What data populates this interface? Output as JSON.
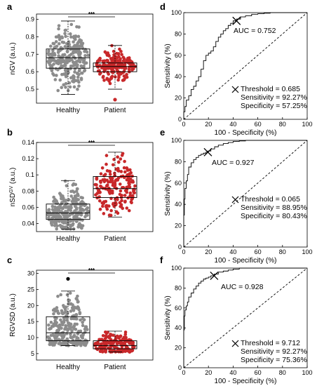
{
  "chart_data": [
    {
      "panel": "a",
      "type": "scatter",
      "subtype": "boxplot-with-jittered-points",
      "categories": [
        "Healthy",
        "Patient"
      ],
      "ylabel": "nGV (a.u.)",
      "ylim": [
        0.42,
        0.93
      ],
      "yticks": [
        "0.5",
        "0.6",
        "0.7",
        "0.8",
        "0.9"
      ],
      "significance": "***",
      "colors": {
        "Healthy": "#8c8c8c",
        "Patient": "#c8282a"
      },
      "series": [
        {
          "name": "Healthy",
          "min": 0.47,
          "q1": 0.62,
          "median": 0.68,
          "q3": 0.73,
          "max": 0.89,
          "outliers": []
        },
        {
          "name": "Patient",
          "min": 0.5,
          "q1": 0.6,
          "median": 0.63,
          "q3": 0.65,
          "max": 0.75,
          "outliers": [
            0.44
          ]
        }
      ]
    },
    {
      "panel": "b",
      "type": "scatter",
      "subtype": "boxplot-with-jittered-points",
      "categories": [
        "Healthy",
        "Patient"
      ],
      "ylabel": "nSD",
      "ylabel_sup": "GV",
      "ylabel_suffix": " (a.u.)",
      "ylim": [
        0.03,
        0.14
      ],
      "yticks": [
        "0.04",
        "0.06",
        "0.08",
        "0.1",
        "0.12",
        "0.14"
      ],
      "significance": "***",
      "colors": {
        "Healthy": "#8c8c8c",
        "Patient": "#c8282a"
      },
      "series": [
        {
          "name": "Healthy",
          "min": 0.033,
          "q1": 0.045,
          "median": 0.053,
          "q3": 0.064,
          "max": 0.093,
          "outliers": []
        },
        {
          "name": "Patient",
          "min": 0.048,
          "q1": 0.072,
          "median": 0.083,
          "q3": 0.098,
          "max": 0.128,
          "outliers": []
        }
      ]
    },
    {
      "panel": "c",
      "type": "scatter",
      "subtype": "boxplot-with-jittered-points",
      "categories": [
        "Healthy",
        "Patient"
      ],
      "ylabel": "RGVSD (a.u.)",
      "ylim": [
        3,
        31
      ],
      "yticks": [
        "5",
        "10",
        "15",
        "20",
        "25",
        "30"
      ],
      "significance": "***",
      "colors": {
        "Healthy": "#8c8c8c",
        "Patient": "#c8282a"
      },
      "series": [
        {
          "name": "Healthy",
          "min": 7.5,
          "q1": 9.0,
          "median": 11.5,
          "q3": 16.5,
          "max": 24.5,
          "outliers": [
            28.3
          ]
        },
        {
          "name": "Patient",
          "min": 5.5,
          "q1": 6.5,
          "median": 7.5,
          "q3": 9.0,
          "max": 12.0,
          "outliers": []
        }
      ]
    },
    {
      "panel": "d",
      "type": "line",
      "subtype": "roc",
      "xlabel": "100 - Specificity (%)",
      "ylabel": "Sensitivity (%)",
      "xlim": [
        0,
        100
      ],
      "ylim": [
        0,
        100
      ],
      "xticks": [
        "0",
        "20",
        "40",
        "60",
        "80",
        "100"
      ],
      "yticks": [
        "0",
        "20",
        "40",
        "60",
        "80",
        "100"
      ],
      "auc_text": "AUC = 0.752",
      "threshold_text": "Threshold = 0.685",
      "sensitivity_text": "Sensitivity = 92.27%",
      "specificity_text": "Specificity = 57.25%",
      "operating_point": [
        42.75,
        92.27
      ],
      "x": [
        0,
        1,
        2,
        4,
        6,
        8,
        10,
        12,
        14,
        16,
        18,
        20,
        22,
        24,
        26,
        28,
        30,
        32,
        34,
        36,
        38,
        40,
        42.75,
        46,
        50,
        55,
        60,
        65,
        70,
        80,
        90,
        100
      ],
      "y": [
        0,
        7,
        12,
        18,
        22,
        28,
        31,
        36,
        40,
        47,
        55,
        60,
        62,
        64,
        68,
        73,
        77,
        80,
        83,
        85,
        88,
        90,
        92.27,
        94,
        96,
        97,
        98.5,
        99,
        99.5,
        100,
        100,
        100
      ]
    },
    {
      "panel": "e",
      "type": "line",
      "subtype": "roc",
      "xlabel": "100 - Specificity (%)",
      "ylabel": "Sensitivity (%)",
      "xlim": [
        0,
        100
      ],
      "ylim": [
        0,
        100
      ],
      "xticks": [
        "0",
        "20",
        "40",
        "60",
        "80",
        "100"
      ],
      "yticks": [
        "0",
        "20",
        "40",
        "60",
        "80",
        "100"
      ],
      "auc_text": "AUC = 0.927",
      "threshold_text": "Threshold = 0.065",
      "sensitivity_text": "Sensitivity = 88.95%",
      "specificity_text": "Specificity = 80.43%",
      "operating_point": [
        19.57,
        88.95
      ],
      "x": [
        0,
        0.5,
        1,
        2,
        3,
        4,
        6,
        8,
        10,
        12,
        14,
        16,
        18,
        19.57,
        22,
        25,
        28,
        32,
        36,
        40,
        45,
        50,
        55,
        60,
        70,
        80,
        90,
        100
      ],
      "y": [
        0,
        30,
        45,
        55,
        62,
        68,
        75,
        79,
        82,
        84,
        86,
        87,
        88,
        88.95,
        90,
        92,
        94,
        95.5,
        97,
        98,
        99,
        99.5,
        100,
        100,
        100,
        100,
        100,
        100
      ]
    },
    {
      "panel": "f",
      "type": "line",
      "subtype": "roc",
      "xlabel": "100 - Specificity (%)",
      "ylabel": "Sensitivity (%)",
      "xlim": [
        0,
        100
      ],
      "ylim": [
        0,
        100
      ],
      "xticks": [
        "0",
        "20",
        "40",
        "60",
        "80",
        "100"
      ],
      "yticks": [
        "0",
        "20",
        "40",
        "60",
        "80",
        "100"
      ],
      "auc_text": "AUC = 0.928",
      "threshold_text": "Threshold = 9.712",
      "sensitivity_text": "Sensitivity = 92.27%",
      "specificity_text": "Specificity = 75.36%",
      "operating_point": [
        24.64,
        92.27
      ],
      "x": [
        0,
        0.5,
        1,
        2,
        3,
        4,
        6,
        8,
        10,
        12,
        14,
        16,
        18,
        20,
        22,
        24.64,
        28,
        32,
        36,
        40,
        45,
        50,
        60,
        70,
        80,
        90,
        100
      ],
      "y": [
        0,
        38,
        52,
        58,
        62,
        66,
        71,
        75,
        79,
        82,
        85,
        87,
        89,
        90,
        91,
        92.27,
        94,
        96,
        97,
        98,
        99,
        100,
        100,
        100,
        100,
        100,
        100
      ]
    }
  ]
}
